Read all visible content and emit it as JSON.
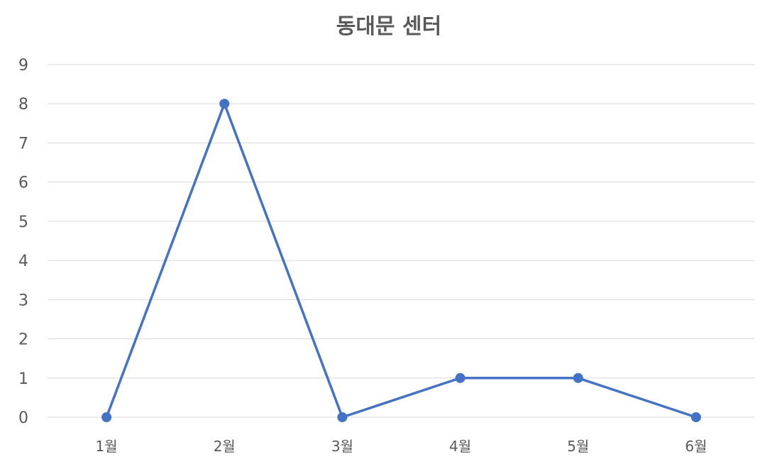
{
  "chart_data": {
    "type": "line",
    "title": "동대문 센터",
    "categories": [
      "1월",
      "2월",
      "3월",
      "4월",
      "5월",
      "6월"
    ],
    "series": [
      {
        "values": [
          0,
          8,
          0,
          1,
          1,
          0
        ]
      }
    ],
    "ylim": [
      0,
      9
    ],
    "yticks": [
      0,
      1,
      2,
      3,
      4,
      5,
      6,
      7,
      8,
      9
    ],
    "grid": true,
    "legend": "none",
    "colors": {
      "series": "#4472c4",
      "grid": "#d9d9d9",
      "text": "#595959"
    }
  }
}
